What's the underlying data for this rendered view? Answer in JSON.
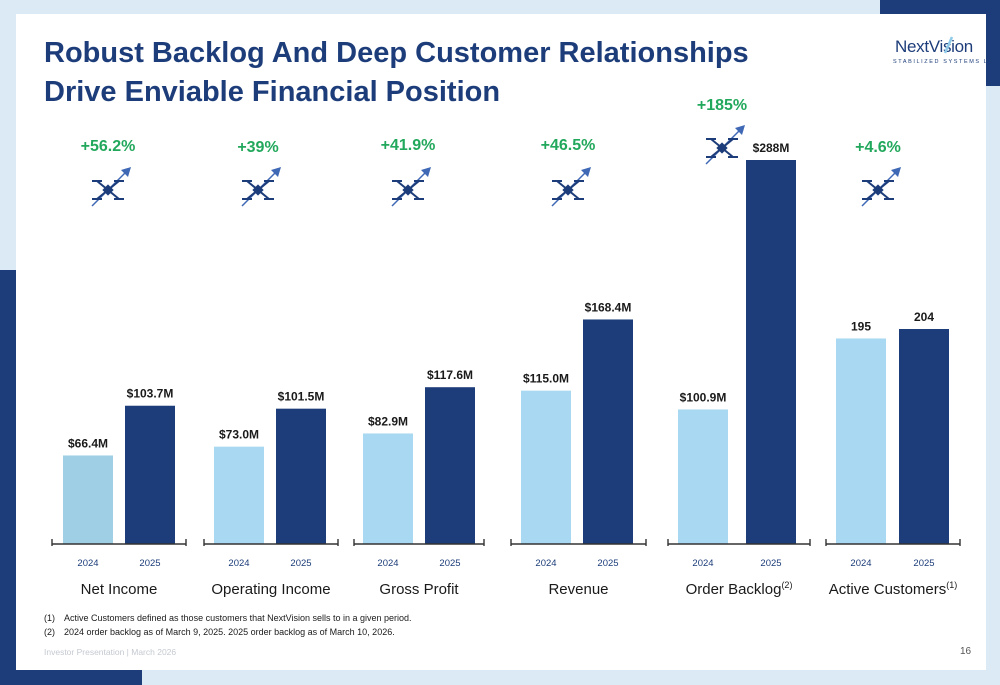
{
  "title": "Robust Backlog And Deep Customer Relationships Drive Enviable Financial Position",
  "logo": {
    "main": "NextVision",
    "sub": "STABILIZED SYSTEMS LTD"
  },
  "colors": {
    "bar_2024": "#a9d8f2",
    "bar_2024_net_income": "#9ecfe4",
    "bar_2025": "#1d3d7a",
    "growth": "#22a85c",
    "accent_navy": "#1d3d7a"
  },
  "chart_data": [
    {
      "type": "bar",
      "category": "Net Income",
      "sup": "",
      "categories": [
        "2024",
        "2025"
      ],
      "values": [
        66.4,
        103.7
      ],
      "unit": "$M",
      "labels": [
        "$66.4M",
        "$103.7M"
      ],
      "growth": "+56.2%"
    },
    {
      "type": "bar",
      "category": "Operating Income",
      "sup": "",
      "categories": [
        "2024",
        "2025"
      ],
      "values": [
        73.0,
        101.5
      ],
      "unit": "$M",
      "labels": [
        "$73.0M",
        "$101.5M"
      ],
      "growth": "+39%"
    },
    {
      "type": "bar",
      "category": "Gross Profit",
      "sup": "",
      "categories": [
        "2024",
        "2025"
      ],
      "values": [
        82.9,
        117.6
      ],
      "unit": "$M",
      "labels": [
        "$82.9M",
        "$117.6M"
      ],
      "growth": "+41.9%"
    },
    {
      "type": "bar",
      "category": "Revenue",
      "sup": "",
      "categories": [
        "2024",
        "2025"
      ],
      "values": [
        115.0,
        168.4
      ],
      "unit": "$M",
      "labels": [
        "$115.0M",
        "$168.4M"
      ],
      "growth": "+46.5%"
    },
    {
      "type": "bar",
      "category": "Order Backlog",
      "sup": "(2)",
      "categories": [
        "2024",
        "2025"
      ],
      "values": [
        100.9,
        288
      ],
      "unit": "$M",
      "labels": [
        "$100.9M",
        "$288M"
      ],
      "growth": "+185%"
    },
    {
      "type": "bar",
      "category": "Active Customers",
      "sup": "(1)",
      "categories": [
        "2024",
        "2025"
      ],
      "values": [
        195,
        204
      ],
      "unit": "customers",
      "labels": [
        "195",
        "204"
      ],
      "growth": "+4.6%"
    }
  ],
  "icons": {
    "growth_marker": "drone-arrow-icon"
  },
  "footnotes": [
    {
      "num": "(1)",
      "text": "Active Customers defined as those customers that NextVision sells to in a given period."
    },
    {
      "num": "(2)",
      "text": "2024 order backlog as of March 9, 2025. 2025 order backlog as of March 10, 2026."
    }
  ],
  "footer": {
    "left": "Investor Presentation | March 2026",
    "page": "16"
  }
}
